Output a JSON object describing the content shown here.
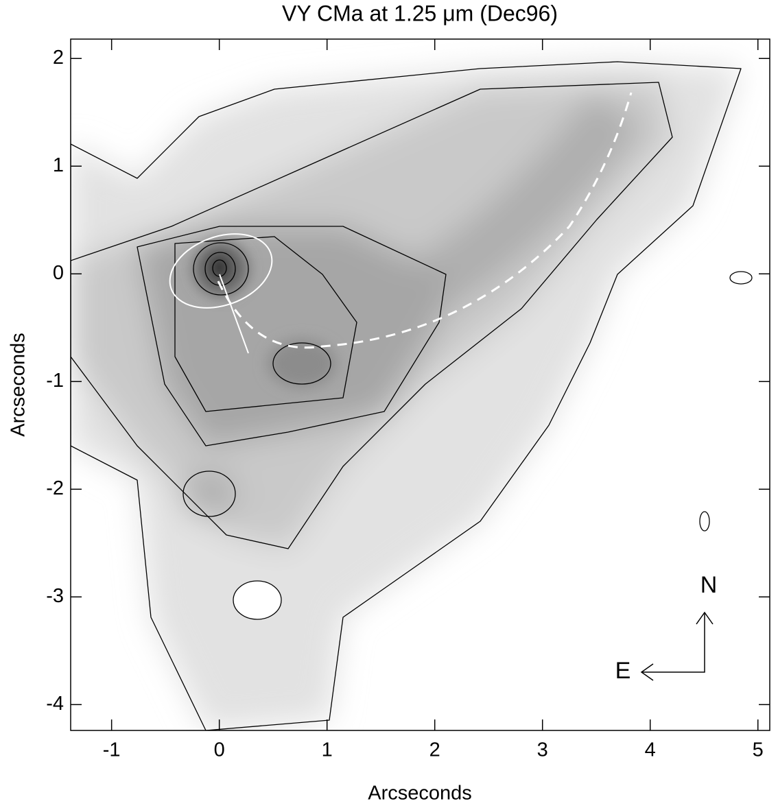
{
  "chart_data": {
    "type": "image",
    "title": "VY CMa at 1.25 μm (Dec96)",
    "xlabel": "Arcseconds",
    "ylabel": "Arcseconds",
    "xlim": [
      -1.38,
      5.11
    ],
    "ylim": [
      -4.24,
      2.18
    ],
    "xticks": [
      -1,
      0,
      1,
      2,
      3,
      4,
      5
    ],
    "yticks": [
      -4,
      -3,
      -2,
      -1,
      0,
      1,
      2
    ],
    "annotations": [
      "N",
      "E"
    ]
  }
}
